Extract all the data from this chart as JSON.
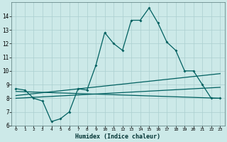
{
  "xlabel": "Humidex (Indice chaleur)",
  "bg_color": "#cce9e8",
  "grid_color": "#aacfcf",
  "line_color": "#006060",
  "xlim": [
    -0.5,
    23.5
  ],
  "ylim": [
    6,
    15
  ],
  "yticks": [
    6,
    7,
    8,
    9,
    10,
    11,
    12,
    13,
    14
  ],
  "xticks": [
    0,
    1,
    2,
    3,
    4,
    5,
    6,
    7,
    8,
    9,
    10,
    11,
    12,
    13,
    14,
    15,
    16,
    17,
    18,
    19,
    20,
    21,
    22,
    23
  ],
  "line1_x": [
    0,
    1,
    2,
    3,
    4,
    5,
    6,
    7,
    8,
    9,
    10,
    11,
    12,
    13,
    14,
    15,
    16,
    17,
    18,
    19,
    20,
    21,
    22,
    23
  ],
  "line1_y": [
    8.7,
    8.6,
    8.0,
    7.8,
    6.3,
    6.5,
    7.0,
    8.7,
    8.6,
    10.4,
    12.8,
    12.0,
    11.5,
    13.7,
    13.7,
    14.6,
    13.5,
    12.1,
    11.5,
    10.0,
    10.0,
    9.0,
    8.0,
    8.0
  ],
  "line2_x": [
    0,
    23
  ],
  "line2_y": [
    8.5,
    8.0
  ],
  "line3_x": [
    0,
    23
  ],
  "line3_y": [
    8.2,
    9.8
  ],
  "line4_x": [
    0,
    23
  ],
  "line4_y": [
    8.0,
    8.8
  ]
}
